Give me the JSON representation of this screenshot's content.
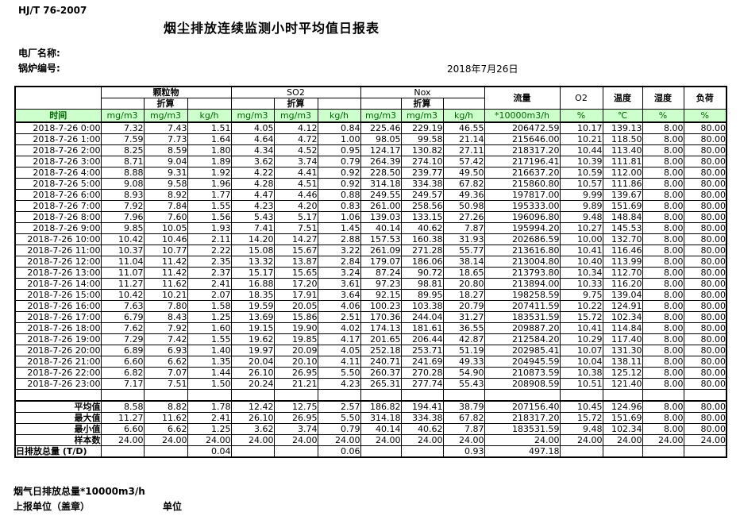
{
  "page": {
    "doc_code": "HJ/T 76-2007",
    "title": "烟尘排放连续监测小时平均值日报表",
    "plant_label": "电厂名称:",
    "boiler_label": "锅炉编号:",
    "date": "2018年7月26日",
    "footer_flow_total_label": "烟气日排放总量*10000m3/h",
    "footer_report_unit_label": "上报单位（盖章）",
    "footer_unit_label": "单位",
    "colors": {
      "header_green_bg": "#ccffcc",
      "header_green_text": "#006600",
      "border": "#000000"
    }
  },
  "table": {
    "header": {
      "time_label": "时间",
      "sub_label": "折算",
      "groups": [
        {
          "name": "颗粒物"
        },
        {
          "name": "SO2"
        },
        {
          "name": "Nox"
        }
      ],
      "singles": [
        {
          "name": "流量"
        },
        {
          "name": "O2"
        },
        {
          "name": "温度"
        },
        {
          "name": "湿度"
        },
        {
          "name": "负荷"
        }
      ],
      "units": [
        "mg/m3",
        "mg/m3",
        "kg/h",
        "mg/m3",
        "mg/m3",
        "kg/h",
        "mg/m3",
        "mg/m3",
        "kg/h",
        "*10000m3/h",
        "%",
        "℃",
        "%",
        "%"
      ]
    },
    "rows": [
      {
        "time": "2018-7-26 0:00",
        "values": [
          "7.32",
          "7.43",
          "1.51",
          "4.05",
          "4.12",
          "0.84",
          "225.46",
          "229.19",
          "46.55",
          "206472.59",
          "10.17",
          "139.13",
          "8.00",
          "80.00"
        ]
      },
      {
        "time": "2018-7-26 1:00",
        "values": [
          "7.59",
          "7.73",
          "1.64",
          "4.64",
          "4.72",
          "1.00",
          "98.05",
          "99.58",
          "21.14",
          "215646.00",
          "10.21",
          "118.50",
          "8.00",
          "80.00"
        ]
      },
      {
        "time": "2018-7-26 2:00",
        "values": [
          "8.25",
          "8.59",
          "1.80",
          "4.34",
          "4.52",
          "0.95",
          "124.17",
          "130.82",
          "27.11",
          "218317.20",
          "10.44",
          "113.40",
          "8.00",
          "80.00"
        ]
      },
      {
        "time": "2018-7-26 3:00",
        "values": [
          "8.71",
          "9.04",
          "1.89",
          "3.62",
          "3.74",
          "0.79",
          "264.39",
          "274.10",
          "57.42",
          "217196.41",
          "10.39",
          "111.81",
          "8.00",
          "80.00"
        ]
      },
      {
        "time": "2018-7-26 4:00",
        "values": [
          "8.88",
          "9.31",
          "1.92",
          "4.22",
          "4.41",
          "0.92",
          "228.50",
          "239.77",
          "49.50",
          "216637.20",
          "10.59",
          "112.00",
          "8.00",
          "80.00"
        ]
      },
      {
        "time": "2018-7-26 5:00",
        "values": [
          "9.08",
          "9.58",
          "1.96",
          "4.28",
          "4.51",
          "0.92",
          "314.18",
          "334.38",
          "67.82",
          "215860.80",
          "10.57",
          "111.86",
          "8.00",
          "80.00"
        ]
      },
      {
        "time": "2018-7-26 6:00",
        "values": [
          "8.93",
          "8.92",
          "1.77",
          "4.47",
          "4.46",
          "0.88",
          "249.55",
          "249.57",
          "49.36",
          "197817.00",
          "9.99",
          "139.67",
          "8.00",
          "80.00"
        ]
      },
      {
        "time": "2018-7-26 7:00",
        "values": [
          "7.92",
          "7.84",
          "1.55",
          "4.23",
          "4.20",
          "0.83",
          "261.00",
          "258.56",
          "50.98",
          "195333.00",
          "9.89",
          "151.69",
          "8.00",
          "80.00"
        ]
      },
      {
        "time": "2018-7-26 8:00",
        "values": [
          "7.96",
          "7.60",
          "1.56",
          "5.43",
          "5.17",
          "1.06",
          "139.03",
          "133.15",
          "27.26",
          "196096.80",
          "9.48",
          "148.84",
          "8.00",
          "80.00"
        ]
      },
      {
        "time": "2018-7-26 9:00",
        "values": [
          "9.85",
          "10.05",
          "1.93",
          "7.41",
          "7.51",
          "1.45",
          "40.14",
          "40.62",
          "7.87",
          "195994.20",
          "10.27",
          "145.53",
          "8.00",
          "80.00"
        ]
      },
      {
        "time": "2018-7-26 10:00",
        "values": [
          "10.42",
          "10.46",
          "2.11",
          "14.20",
          "14.27",
          "2.88",
          "157.53",
          "160.38",
          "31.93",
          "202686.59",
          "10.00",
          "132.70",
          "8.00",
          "80.00"
        ]
      },
      {
        "time": "2018-7-26 11:00",
        "values": [
          "10.37",
          "10.77",
          "2.22",
          "15.08",
          "15.67",
          "3.22",
          "261.09",
          "271.28",
          "55.77",
          "213616.80",
          "10.41",
          "116.46",
          "8.00",
          "80.00"
        ]
      },
      {
        "time": "2018-7-26 12:00",
        "values": [
          "11.04",
          "11.42",
          "2.35",
          "13.32",
          "13.87",
          "2.84",
          "179.07",
          "186.06",
          "38.14",
          "213004.80",
          "10.40",
          "113.99",
          "8.00",
          "80.00"
        ]
      },
      {
        "time": "2018-7-26 13:00",
        "values": [
          "11.07",
          "11.42",
          "2.37",
          "15.17",
          "15.65",
          "3.24",
          "87.24",
          "90.72",
          "18.65",
          "213793.80",
          "10.34",
          "112.70",
          "8.00",
          "80.00"
        ]
      },
      {
        "time": "2018-7-26 14:00",
        "values": [
          "11.27",
          "11.62",
          "2.41",
          "16.88",
          "17.20",
          "3.61",
          "97.23",
          "98.81",
          "20.80",
          "213894.00",
          "10.33",
          "116.20",
          "8.00",
          "80.00"
        ]
      },
      {
        "time": "2018-7-26 15:00",
        "values": [
          "10.42",
          "10.21",
          "2.07",
          "18.35",
          "17.91",
          "3.64",
          "92.15",
          "89.95",
          "18.27",
          "198258.59",
          "9.75",
          "139.04",
          "8.00",
          "80.00"
        ]
      },
      {
        "time": "2018-7-26 16:00",
        "values": [
          "7.63",
          "7.80",
          "1.58",
          "19.59",
          "20.05",
          "4.06",
          "100.23",
          "103.38",
          "20.79",
          "207411.59",
          "10.22",
          "124.91",
          "8.00",
          "80.00"
        ]
      },
      {
        "time": "2018-7-26 17:00",
        "values": [
          "6.79",
          "8.43",
          "1.25",
          "13.69",
          "15.86",
          "2.51",
          "170.36",
          "244.04",
          "31.27",
          "183531.59",
          "15.72",
          "102.34",
          "8.00",
          "80.00"
        ]
      },
      {
        "time": "2018-7-26 18:00",
        "values": [
          "7.62",
          "7.92",
          "1.60",
          "19.15",
          "19.90",
          "4.02",
          "174.13",
          "181.61",
          "36.55",
          "209887.20",
          "10.41",
          "114.84",
          "8.00",
          "80.00"
        ]
      },
      {
        "time": "2018-7-26 19:00",
        "values": [
          "7.29",
          "7.42",
          "1.55",
          "19.62",
          "19.85",
          "4.17",
          "201.65",
          "206.44",
          "42.87",
          "212584.20",
          "10.29",
          "117.40",
          "8.00",
          "80.00"
        ]
      },
      {
        "time": "2018-7-26 20:00",
        "values": [
          "6.89",
          "6.93",
          "1.40",
          "19.97",
          "20.09",
          "4.05",
          "252.18",
          "253.71",
          "51.19",
          "202985.41",
          "10.07",
          "131.30",
          "8.00",
          "80.00"
        ]
      },
      {
        "time": "2018-7-26 21:00",
        "values": [
          "6.60",
          "6.62",
          "1.35",
          "20.04",
          "20.10",
          "4.11",
          "240.71",
          "241.69",
          "49.33",
          "204945.59",
          "10.04",
          "138.11",
          "8.00",
          "80.00"
        ]
      },
      {
        "time": "2018-7-26 22:00",
        "values": [
          "6.82",
          "7.07",
          "1.44",
          "26.10",
          "26.95",
          "5.50",
          "260.37",
          "270.28",
          "54.90",
          "210873.59",
          "10.38",
          "125.12",
          "8.00",
          "80.00"
        ]
      },
      {
        "time": "2018-7-26 23:00",
        "values": [
          "7.17",
          "7.51",
          "1.50",
          "20.24",
          "21.21",
          "4.23",
          "265.31",
          "277.74",
          "55.43",
          "208908.59",
          "10.51",
          "121.40",
          "8.00",
          "80.00"
        ]
      }
    ],
    "summary": [
      {
        "label": "平均值",
        "align": "right",
        "values": [
          "8.58",
          "8.82",
          "1.78",
          "12.42",
          "12.75",
          "2.57",
          "186.82",
          "194.41",
          "38.79",
          "207156.40",
          "10.45",
          "124.96",
          "8.00",
          "80.00"
        ]
      },
      {
        "label": "最大值",
        "align": "right",
        "values": [
          "11.27",
          "11.62",
          "2.41",
          "26.10",
          "26.95",
          "5.50",
          "314.18",
          "334.38",
          "67.82",
          "218317.20",
          "15.72",
          "151.69",
          "8.00",
          "80.00"
        ]
      },
      {
        "label": "最小值",
        "align": "right",
        "values": [
          "6.60",
          "6.62",
          "1.25",
          "3.62",
          "3.74",
          "0.79",
          "40.14",
          "40.62",
          "7.87",
          "183531.59",
          "9.48",
          "102.34",
          "8.00",
          "80.00"
        ]
      },
      {
        "label": "样本数",
        "align": "right",
        "values": [
          "24.00",
          "24.00",
          "24.00",
          "24.00",
          "24.00",
          "24.00",
          "24.00",
          "24.00",
          "24.00",
          "24.00",
          "24.00",
          "24.00",
          "24.00",
          "24.00"
        ]
      },
      {
        "label": "日排放总量 (T/D)",
        "align": "left",
        "values": [
          "",
          "",
          "0.04",
          "",
          "",
          "0.06",
          "",
          "",
          "0.93",
          "497.18",
          "",
          "",
          "",
          ""
        ]
      }
    ]
  }
}
